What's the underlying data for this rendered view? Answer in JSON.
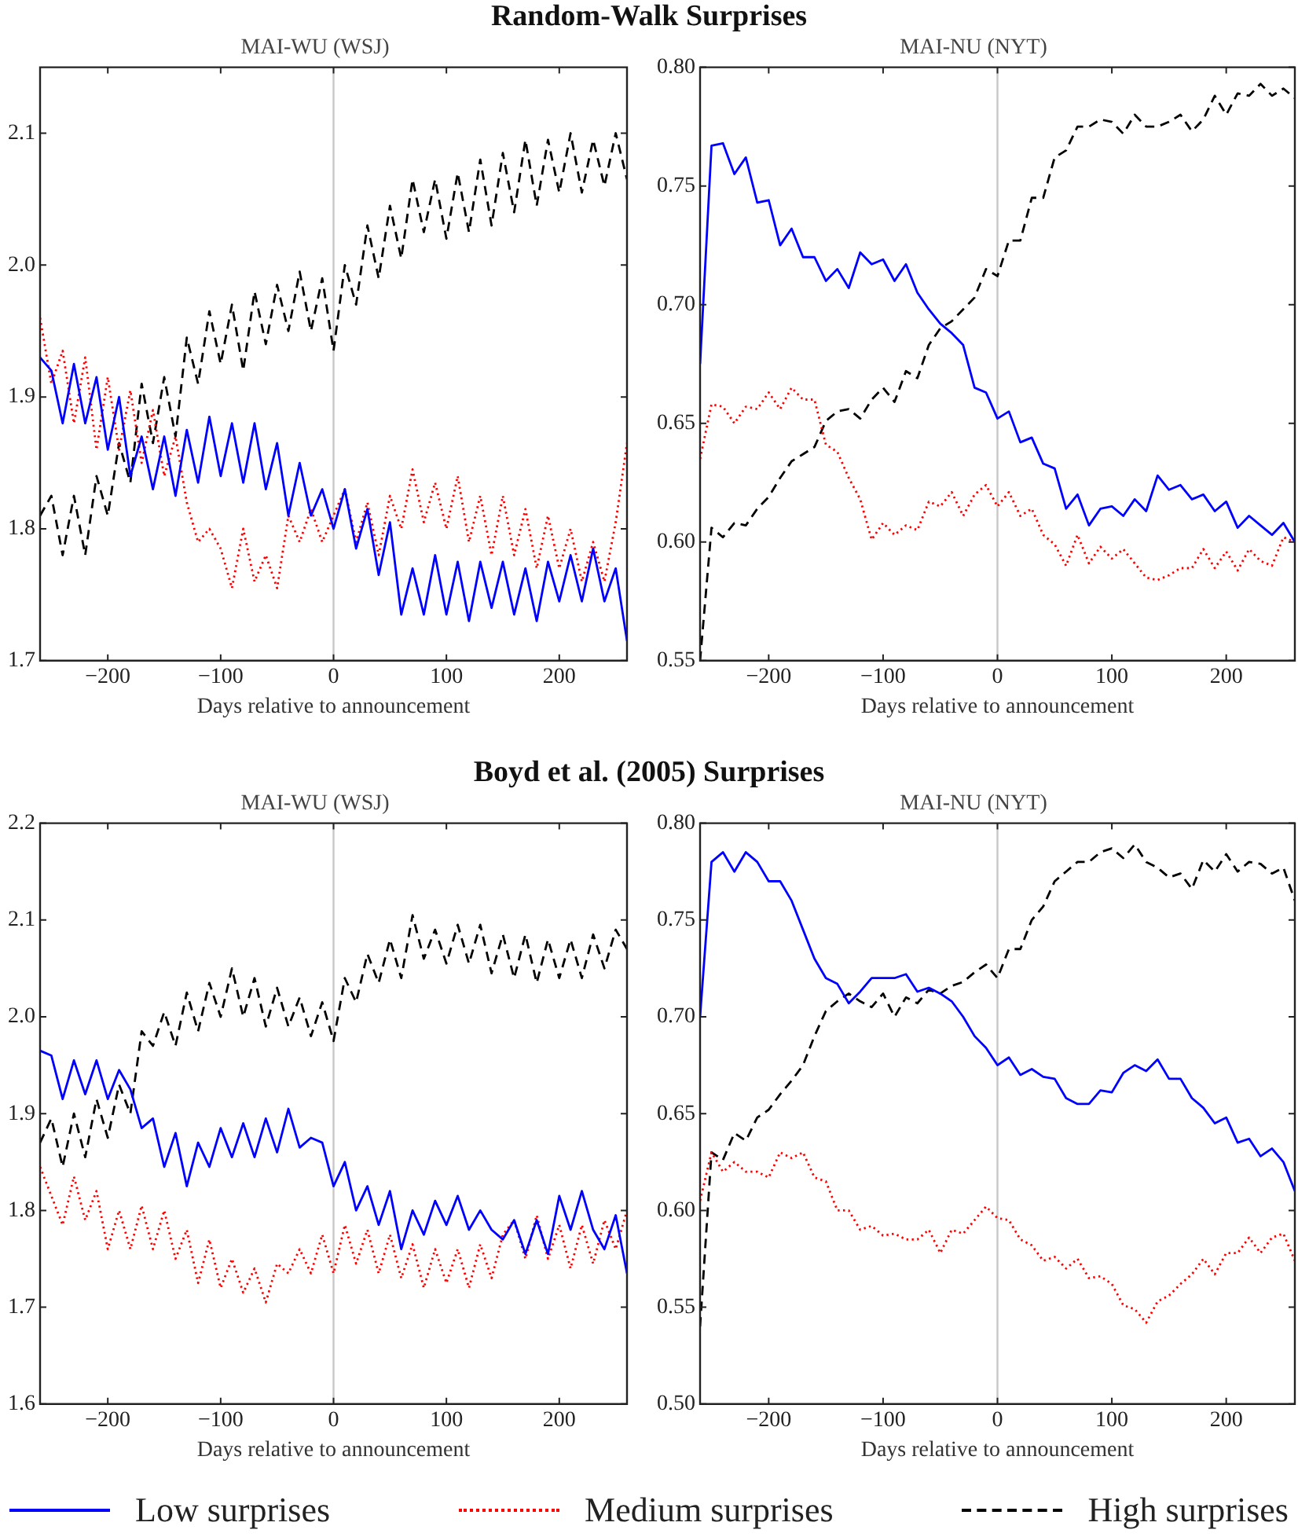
{
  "chart_data": [
    {
      "type": "line",
      "title": "Random-Walk Surprises",
      "subtitle": "MAI-WU (WSJ)",
      "xlabel": "Days relative to announcement",
      "marker": "none",
      "grid": false,
      "legend": false,
      "x": [
        -260,
        -250,
        -240,
        -230,
        -220,
        -210,
        -200,
        -190,
        -180,
        -170,
        -160,
        -150,
        -140,
        -130,
        -120,
        -110,
        -100,
        -90,
        -80,
        -70,
        -60,
        -50,
        -40,
        -30,
        -20,
        -10,
        0,
        10,
        20,
        30,
        40,
        50,
        60,
        70,
        80,
        90,
        100,
        110,
        120,
        130,
        140,
        150,
        160,
        170,
        180,
        190,
        200,
        210,
        220,
        230,
        240,
        250,
        260
      ],
      "xlim": [
        -260,
        260
      ],
      "xticks": [
        -200,
        -100,
        0,
        100,
        200
      ],
      "ylim": [
        1.7,
        2.15
      ],
      "yticks": [
        1.7,
        1.8,
        1.9,
        {
          "value": 2,
          "label": "2.0"
        },
        2.1
      ],
      "ref_lines": [
        {
          "axis": "x",
          "value": 0,
          "color": "#c8c8c8"
        }
      ],
      "series": [
        {
          "color": "#0000ff",
          "line_style": "solid",
          "values": [
            1.93,
            1.92,
            1.88,
            1.925,
            1.88,
            1.915,
            1.86,
            1.9,
            1.84,
            1.87,
            1.83,
            1.87,
            1.825,
            1.875,
            1.835,
            1.885,
            1.84,
            1.88,
            1.835,
            1.88,
            1.83,
            1.865,
            1.81,
            1.85,
            1.81,
            1.83,
            1.8,
            1.83,
            1.785,
            1.815,
            1.765,
            1.805,
            1.735,
            1.77,
            1.735,
            1.78,
            1.735,
            1.775,
            1.73,
            1.775,
            1.74,
            1.775,
            1.735,
            1.77,
            1.73,
            1.775,
            1.745,
            1.78,
            1.745,
            1.785,
            1.745,
            1.77,
            1.715
          ]
        },
        {
          "color": "#ff0000",
          "line_style": "dotted",
          "values": [
            1.96,
            1.91,
            1.935,
            1.88,
            1.93,
            1.86,
            1.915,
            1.86,
            1.905,
            1.85,
            1.89,
            1.84,
            1.87,
            1.82,
            1.79,
            1.8,
            1.785,
            1.755,
            1.8,
            1.76,
            1.78,
            1.755,
            1.81,
            1.79,
            1.815,
            1.79,
            1.81,
            1.83,
            1.79,
            1.82,
            1.78,
            1.825,
            1.8,
            1.845,
            1.805,
            1.835,
            1.8,
            1.84,
            1.79,
            1.825,
            1.78,
            1.825,
            1.78,
            1.815,
            1.77,
            1.81,
            1.77,
            1.8,
            1.76,
            1.79,
            1.76,
            1.805,
            1.865
          ]
        },
        {
          "color": "#000000",
          "line_style": "dashed",
          "values": [
            1.81,
            1.825,
            1.78,
            1.825,
            1.78,
            1.84,
            1.81,
            1.865,
            1.835,
            1.91,
            1.865,
            1.915,
            1.87,
            1.945,
            1.91,
            1.965,
            1.925,
            1.97,
            1.92,
            1.98,
            1.94,
            1.985,
            1.95,
            1.995,
            1.95,
            1.99,
            1.935,
            2.0,
            1.97,
            2.03,
            1.99,
            2.045,
            2.005,
            2.065,
            2.025,
            2.065,
            2.02,
            2.07,
            2.025,
            2.08,
            2.03,
            2.085,
            2.04,
            2.095,
            2.045,
            2.095,
            2.055,
            2.1,
            2.055,
            2.095,
            2.06,
            2.1,
            2.065
          ]
        }
      ]
    },
    {
      "type": "line",
      "subtitle": "MAI-NU (NYT)",
      "xlabel": "Days relative to announcement",
      "marker": "none",
      "grid": false,
      "legend": false,
      "x": [
        -260,
        -250,
        -240,
        -230,
        -220,
        -210,
        -200,
        -190,
        -180,
        -170,
        -160,
        -150,
        -140,
        -130,
        -120,
        -110,
        -100,
        -90,
        -80,
        -70,
        -60,
        -50,
        -40,
        -30,
        -20,
        -10,
        0,
        10,
        20,
        30,
        40,
        50,
        60,
        70,
        80,
        90,
        100,
        110,
        120,
        130,
        140,
        150,
        160,
        170,
        180,
        190,
        200,
        210,
        220,
        230,
        240,
        250,
        260
      ],
      "xlim": [
        -260,
        260
      ],
      "xticks": [
        -200,
        -100,
        0,
        100,
        200
      ],
      "ylim": [
        0.55,
        0.8
      ],
      "yticks": [
        0.55,
        {
          "value": 0.6,
          "label": "0.60"
        },
        0.65,
        {
          "value": 0.7,
          "label": "0.70"
        },
        0.75,
        {
          "value": 0.8,
          "label": "0.80"
        }
      ],
      "ref_lines": [
        {
          "axis": "x",
          "value": 0,
          "color": "#c8c8c8"
        }
      ],
      "series": [
        {
          "color": "#0000ff",
          "line_style": "solid",
          "values": [
            0.675,
            0.767,
            0.768,
            0.755,
            0.762,
            0.743,
            0.744,
            0.725,
            0.732,
            0.72,
            0.72,
            0.71,
            0.715,
            0.707,
            0.722,
            0.717,
            0.719,
            0.71,
            0.717,
            0.705,
            0.698,
            0.692,
            0.688,
            0.683,
            0.665,
            0.663,
            0.652,
            0.655,
            0.642,
            0.644,
            0.633,
            0.631,
            0.614,
            0.62,
            0.607,
            0.614,
            0.615,
            0.611,
            0.618,
            0.613,
            0.628,
            0.622,
            0.624,
            0.618,
            0.62,
            0.613,
            0.617,
            0.606,
            0.611,
            0.607,
            0.603,
            0.608,
            0.6
          ]
        },
        {
          "color": "#ff0000",
          "line_style": "dotted",
          "values": [
            0.635,
            0.658,
            0.657,
            0.65,
            0.657,
            0.656,
            0.663,
            0.656,
            0.665,
            0.66,
            0.66,
            0.641,
            0.638,
            0.627,
            0.618,
            0.601,
            0.608,
            0.603,
            0.607,
            0.605,
            0.617,
            0.615,
            0.621,
            0.611,
            0.62,
            0.624,
            0.615,
            0.621,
            0.611,
            0.614,
            0.603,
            0.599,
            0.59,
            0.603,
            0.591,
            0.598,
            0.593,
            0.597,
            0.591,
            0.585,
            0.584,
            0.586,
            0.589,
            0.589,
            0.597,
            0.589,
            0.596,
            0.588,
            0.597,
            0.592,
            0.59,
            0.602,
            0.6
          ]
        },
        {
          "color": "#000000",
          "line_style": "dashed",
          "values": [
            0.55,
            0.606,
            0.602,
            0.608,
            0.607,
            0.614,
            0.619,
            0.627,
            0.634,
            0.637,
            0.64,
            0.651,
            0.655,
            0.656,
            0.652,
            0.66,
            0.665,
            0.659,
            0.672,
            0.669,
            0.683,
            0.69,
            0.693,
            0.698,
            0.703,
            0.715,
            0.712,
            0.727,
            0.727,
            0.745,
            0.745,
            0.762,
            0.765,
            0.775,
            0.775,
            0.778,
            0.777,
            0.772,
            0.78,
            0.775,
            0.775,
            0.777,
            0.78,
            0.773,
            0.778,
            0.788,
            0.78,
            0.789,
            0.788,
            0.793,
            0.788,
            0.791,
            0.787
          ]
        }
      ]
    },
    {
      "type": "line",
      "title": "Boyd et al. (2005) Surprises",
      "subtitle": "MAI-WU (WSJ)",
      "xlabel": "Days relative to announcement",
      "marker": "none",
      "grid": false,
      "legend": false,
      "x": [
        -260,
        -250,
        -240,
        -230,
        -220,
        -210,
        -200,
        -190,
        -180,
        -170,
        -160,
        -150,
        -140,
        -130,
        -120,
        -110,
        -100,
        -90,
        -80,
        -70,
        -60,
        -50,
        -40,
        -30,
        -20,
        -10,
        0,
        10,
        20,
        30,
        40,
        50,
        60,
        70,
        80,
        90,
        100,
        110,
        120,
        130,
        140,
        150,
        160,
        170,
        180,
        190,
        200,
        210,
        220,
        230,
        240,
        250,
        260
      ],
      "xlim": [
        -260,
        260
      ],
      "xticks": [
        -200,
        -100,
        0,
        100,
        200
      ],
      "ylim": [
        1.6,
        2.2
      ],
      "yticks": [
        1.6,
        1.7,
        1.8,
        1.9,
        {
          "value": 2,
          "label": "2.0"
        },
        2.1,
        2.2
      ],
      "ref_lines": [
        {
          "axis": "x",
          "value": 0,
          "color": "#c8c8c8"
        }
      ],
      "series": [
        {
          "color": "#0000ff",
          "line_style": "solid",
          "values": [
            1.965,
            1.96,
            1.915,
            1.955,
            1.92,
            1.955,
            1.915,
            1.945,
            1.925,
            1.885,
            1.895,
            1.845,
            1.88,
            1.825,
            1.87,
            1.845,
            1.885,
            1.855,
            1.89,
            1.855,
            1.895,
            1.86,
            1.905,
            1.865,
            1.875,
            1.87,
            1.825,
            1.85,
            1.8,
            1.825,
            1.785,
            1.82,
            1.76,
            1.8,
            1.775,
            1.81,
            1.785,
            1.815,
            1.78,
            1.8,
            1.78,
            1.77,
            1.79,
            1.755,
            1.79,
            1.755,
            1.815,
            1.78,
            1.82,
            1.78,
            1.76,
            1.795,
            1.735
          ]
        },
        {
          "color": "#ff0000",
          "line_style": "dotted",
          "values": [
            1.845,
            1.815,
            1.785,
            1.835,
            1.79,
            1.82,
            1.76,
            1.8,
            1.76,
            1.805,
            1.76,
            1.8,
            1.75,
            1.78,
            1.725,
            1.77,
            1.72,
            1.75,
            1.715,
            1.74,
            1.705,
            1.745,
            1.735,
            1.76,
            1.735,
            1.775,
            1.735,
            1.785,
            1.745,
            1.78,
            1.735,
            1.775,
            1.73,
            1.765,
            1.72,
            1.76,
            1.725,
            1.76,
            1.72,
            1.765,
            1.73,
            1.775,
            1.79,
            1.75,
            1.795,
            1.75,
            1.785,
            1.74,
            1.785,
            1.745,
            1.79,
            1.76,
            1.8
          ]
        },
        {
          "color": "#000000",
          "line_style": "dashed",
          "values": [
            1.87,
            1.895,
            1.845,
            1.9,
            1.855,
            1.915,
            1.875,
            1.93,
            1.9,
            1.985,
            1.97,
            2.005,
            1.97,
            2.025,
            1.985,
            2.035,
            2.0,
            2.05,
            2.0,
            2.04,
            1.99,
            2.03,
            1.99,
            2.02,
            1.98,
            2.015,
            1.975,
            2.04,
            2.015,
            2.065,
            2.035,
            2.08,
            2.04,
            2.105,
            2.06,
            2.09,
            2.055,
            2.095,
            2.055,
            2.095,
            2.045,
            2.085,
            2.04,
            2.085,
            2.035,
            2.08,
            2.04,
            2.08,
            2.04,
            2.085,
            2.05,
            2.09,
            2.07
          ]
        }
      ]
    },
    {
      "type": "line",
      "subtitle": "MAI-NU (NYT)",
      "xlabel": "Days relative to announcement",
      "marker": "none",
      "grid": false,
      "legend": "bottom",
      "x": [
        -260,
        -250,
        -240,
        -230,
        -220,
        -210,
        -200,
        -190,
        -180,
        -170,
        -160,
        -150,
        -140,
        -130,
        -120,
        -110,
        -100,
        -90,
        -80,
        -70,
        -60,
        -50,
        -40,
        -30,
        -20,
        -10,
        0,
        10,
        20,
        30,
        40,
        50,
        60,
        70,
        80,
        90,
        100,
        110,
        120,
        130,
        140,
        150,
        160,
        170,
        180,
        190,
        200,
        210,
        220,
        230,
        240,
        250,
        260
      ],
      "xlim": [
        -260,
        260
      ],
      "xticks": [
        -200,
        -100,
        0,
        100,
        200
      ],
      "ylim": [
        0.5,
        0.8
      ],
      "yticks": [
        {
          "value": 0.5,
          "label": "0.50"
        },
        0.55,
        {
          "value": 0.6,
          "label": "0.60"
        },
        0.65,
        {
          "value": 0.7,
          "label": "0.70"
        },
        0.75,
        {
          "value": 0.8,
          "label": "0.80"
        }
      ],
      "ref_lines": [
        {
          "axis": "x",
          "value": 0,
          "color": "#c8c8c8"
        }
      ],
      "series": [
        {
          "name": "Low surprises",
          "color": "#0000ff",
          "line_style": "solid",
          "values": [
            0.7,
            0.78,
            0.785,
            0.775,
            0.785,
            0.78,
            0.77,
            0.77,
            0.76,
            0.745,
            0.73,
            0.72,
            0.717,
            0.707,
            0.713,
            0.72,
            0.72,
            0.72,
            0.722,
            0.713,
            0.715,
            0.712,
            0.708,
            0.7,
            0.69,
            0.684,
            0.675,
            0.679,
            0.67,
            0.673,
            0.669,
            0.668,
            0.658,
            0.655,
            0.655,
            0.662,
            0.661,
            0.671,
            0.675,
            0.672,
            0.678,
            0.668,
            0.668,
            0.658,
            0.653,
            0.645,
            0.648,
            0.635,
            0.637,
            0.628,
            0.632,
            0.625,
            0.61
          ]
        },
        {
          "name": "Medium surprises",
          "color": "#ff0000",
          "line_style": "dotted",
          "values": [
            0.605,
            0.63,
            0.62,
            0.625,
            0.62,
            0.62,
            0.617,
            0.63,
            0.627,
            0.63,
            0.617,
            0.615,
            0.6,
            0.6,
            0.59,
            0.592,
            0.587,
            0.588,
            0.585,
            0.585,
            0.59,
            0.578,
            0.59,
            0.588,
            0.595,
            0.602,
            0.596,
            0.595,
            0.585,
            0.582,
            0.574,
            0.576,
            0.57,
            0.575,
            0.565,
            0.566,
            0.562,
            0.551,
            0.549,
            0.542,
            0.553,
            0.556,
            0.562,
            0.567,
            0.575,
            0.567,
            0.578,
            0.578,
            0.586,
            0.578,
            0.586,
            0.588,
            0.574
          ]
        },
        {
          "name": "High surprises",
          "color": "#000000",
          "line_style": "dashed",
          "values": [
            0.54,
            0.63,
            0.626,
            0.64,
            0.636,
            0.648,
            0.652,
            0.66,
            0.667,
            0.675,
            0.69,
            0.703,
            0.708,
            0.712,
            0.708,
            0.705,
            0.712,
            0.7,
            0.71,
            0.707,
            0.714,
            0.712,
            0.716,
            0.718,
            0.723,
            0.727,
            0.72,
            0.735,
            0.735,
            0.75,
            0.757,
            0.77,
            0.775,
            0.78,
            0.78,
            0.785,
            0.787,
            0.782,
            0.789,
            0.78,
            0.777,
            0.772,
            0.774,
            0.766,
            0.781,
            0.775,
            0.784,
            0.775,
            0.78,
            0.779,
            0.774,
            0.777,
            0.76
          ]
        }
      ]
    }
  ]
}
